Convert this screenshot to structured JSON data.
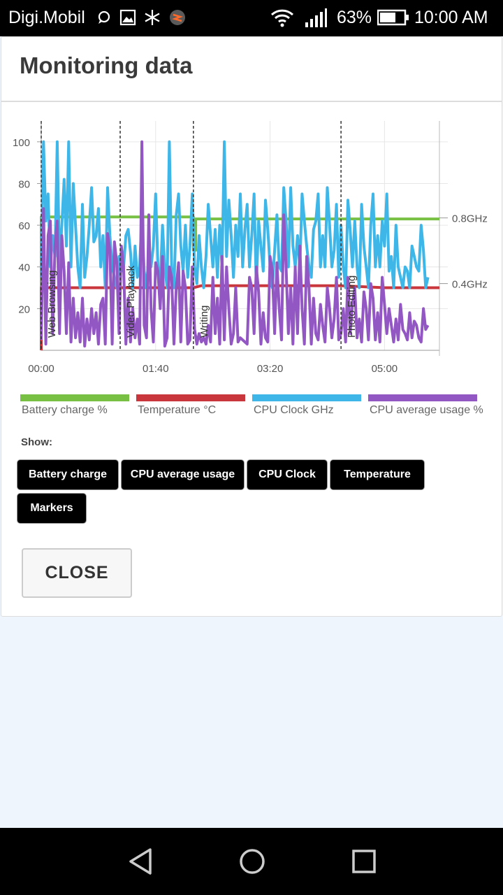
{
  "status_bar": {
    "carrier": "Digi.Mobil",
    "battery_percent": "63%",
    "time": "10:00 AM",
    "icons": [
      "chat-icon",
      "image-icon",
      "snowflake-icon",
      "app-icon",
      "wifi-icon",
      "signal-icon",
      "battery-icon"
    ]
  },
  "dialog": {
    "title": "Monitoring data",
    "show_label": "Show:",
    "toggles": [
      {
        "label": "Battery charge"
      },
      {
        "label": "CPU average usage"
      },
      {
        "label": "CPU Clock"
      },
      {
        "label": "Temperature"
      },
      {
        "label": "Markers"
      }
    ],
    "close_label": "CLOSE"
  },
  "chart_data": {
    "type": "line",
    "x_ticks": [
      "00:00",
      "01:40",
      "03:20",
      "05:00"
    ],
    "x_tick_values_min": [
      0,
      100,
      200,
      300
    ],
    "x_range_min": [
      0,
      348
    ],
    "y_left_ticks": [
      20,
      40,
      60,
      80,
      100
    ],
    "y_left_range": [
      0,
      110
    ],
    "y_right_ticks": [
      "0.4GHz",
      "0.8GHz"
    ],
    "grid": true,
    "legend_position": "bottom",
    "markers": [
      {
        "label": "Web Browsing",
        "x_min": 0
      },
      {
        "label": "Video Playback",
        "x_min": 69
      },
      {
        "label": "Writing",
        "x_min": 133
      },
      {
        "label": "Photo Editing",
        "x_min": 262
      }
    ],
    "series": [
      {
        "name": "Battery charge %",
        "color": "#77c043",
        "points": [
          [
            0,
            0
          ],
          [
            0,
            64
          ],
          [
            133,
            64
          ],
          [
            133,
            48
          ],
          [
            135,
            48
          ],
          [
            135,
            63
          ],
          [
            348,
            63
          ]
        ]
      },
      {
        "name": "Temperature °C",
        "color": "#c9363b",
        "points": [
          [
            0,
            0
          ],
          [
            0,
            30
          ],
          [
            40,
            30
          ],
          [
            80,
            30
          ],
          [
            133,
            30
          ],
          [
            140,
            31
          ],
          [
            200,
            31
          ],
          [
            262,
            31
          ],
          [
            300,
            30
          ],
          [
            348,
            30
          ]
        ]
      },
      {
        "name": "CPU Clock GHz",
        "color": "#3fb6e8",
        "x_step_min": 2,
        "values": [
          35,
          100,
          62,
          75,
          40,
          55,
          45,
          100,
          40,
          60,
          82,
          50,
          100,
          40,
          80,
          60,
          40,
          30,
          70,
          35,
          45,
          60,
          78,
          52,
          55,
          68,
          40,
          55,
          30,
          78,
          55,
          40,
          35,
          30,
          45,
          38,
          40,
          55,
          58,
          47,
          30,
          50,
          35,
          40,
          65,
          38,
          30,
          45,
          40,
          50,
          75,
          40,
          32,
          60,
          40,
          30,
          100,
          40,
          30,
          65,
          75,
          50,
          38,
          60,
          35,
          50,
          75,
          40,
          32,
          55,
          40,
          30,
          45,
          70,
          55,
          40,
          58,
          35,
          60,
          40,
          100,
          45,
          72,
          55,
          35,
          60,
          45,
          75,
          40,
          58,
          70,
          40,
          55,
          75,
          30,
          62,
          50,
          38,
          72,
          58,
          40,
          30,
          48,
          65,
          40,
          38,
          78,
          62,
          40,
          78,
          50,
          40,
          55,
          40,
          75,
          62,
          50,
          40,
          35,
          58,
          62,
          75,
          40,
          55,
          40,
          78,
          60,
          40,
          48,
          70,
          35,
          60,
          40,
          30,
          72,
          58,
          40,
          62,
          40,
          30,
          70,
          50,
          40,
          30,
          60,
          75,
          40,
          55,
          40,
          62,
          50,
          75,
          38,
          45,
          30,
          60,
          40,
          35,
          30,
          40,
          38,
          30,
          50,
          45,
          40,
          38,
          60,
          48,
          30,
          35
        ]
      },
      {
        "name": "CPU average usage %",
        "color": "#9357c4",
        "x_step_min": 2,
        "values": [
          5,
          68,
          3,
          55,
          62,
          8,
          50,
          62,
          8,
          55,
          38,
          8,
          42,
          4,
          25,
          6,
          18,
          4,
          25,
          2,
          15,
          5,
          20,
          8,
          18,
          3,
          22,
          25,
          3,
          56,
          48,
          3,
          52,
          42,
          8,
          50,
          40,
          3,
          25,
          4,
          20,
          6,
          15,
          3,
          100,
          12,
          6,
          65,
          20,
          4,
          42,
          38,
          20,
          45,
          2,
          6,
          40,
          35,
          3,
          30,
          42,
          4,
          38,
          30,
          3,
          5,
          40,
          10,
          3,
          8,
          4,
          6,
          3,
          12,
          4,
          35,
          8,
          25,
          3,
          45,
          5,
          40,
          20,
          3,
          8,
          30,
          4,
          6,
          5,
          4,
          3,
          35,
          30,
          8,
          40,
          28,
          3,
          18,
          6,
          4,
          45,
          38,
          8,
          42,
          20,
          5,
          65,
          40,
          8,
          30,
          3,
          40,
          8,
          50,
          20,
          3,
          45,
          30,
          3,
          25,
          8,
          5,
          22,
          12,
          4,
          30,
          20,
          6,
          15,
          35,
          5,
          8,
          20,
          4,
          35,
          8,
          22,
          30,
          6,
          15,
          4,
          28,
          20,
          5,
          32,
          25,
          5,
          18,
          4,
          35,
          22,
          8,
          20,
          12,
          4,
          15,
          5,
          22,
          10,
          8,
          5,
          18,
          6,
          14,
          12,
          6,
          4,
          20,
          10,
          12
        ]
      }
    ]
  }
}
